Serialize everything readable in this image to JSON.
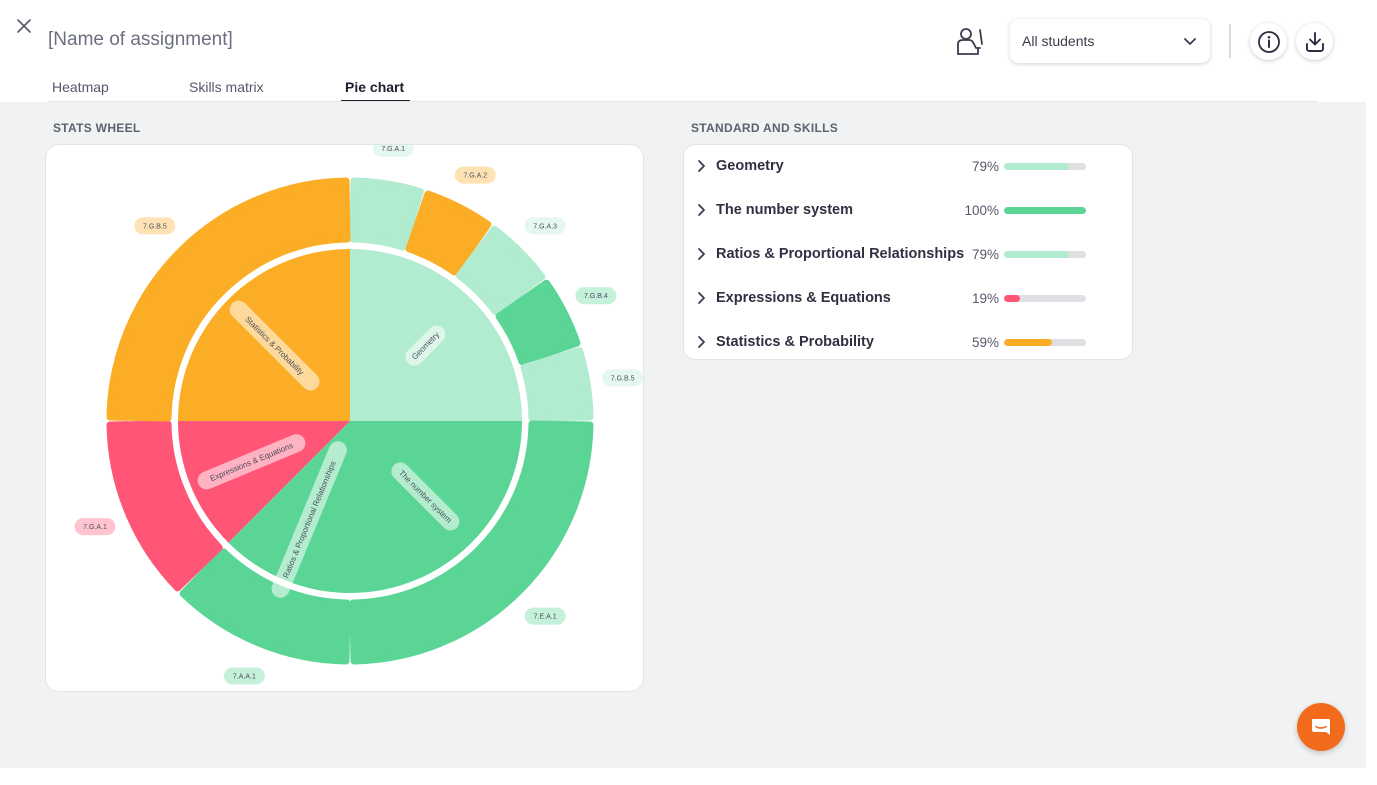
{
  "header": {
    "assignment_name": "[Name of assignment]",
    "student_filter": "All students",
    "icons": [
      "close-icon",
      "seat-icon",
      "chevron-down-icon",
      "info-icon",
      "download-icon"
    ]
  },
  "tabs": [
    {
      "label": "Heatmap",
      "active": false
    },
    {
      "label": "Skills matrix",
      "active": false
    },
    {
      "label": "Pie chart",
      "active": true
    }
  ],
  "stats_wheel": {
    "section_title": "STATS WHEEL"
  },
  "standards": {
    "section_title": "STANDARD AND SKILLS",
    "items": [
      {
        "label": "Geometry",
        "percent_text": "79%",
        "value": 79,
        "color": "#b1ebd0"
      },
      {
        "label": "The number system",
        "percent_text": "100%",
        "value": 100,
        "color": "#5ad596"
      },
      {
        "label": "Ratios & Proportional Relationships",
        "percent_text": "79%",
        "value": 79,
        "color": "#b1ebd0"
      },
      {
        "label": "Expressions & Equations",
        "percent_text": "19%",
        "value": 19,
        "color": "#ff5577"
      },
      {
        "label": "Statistics & Probability",
        "percent_text": "59%",
        "value": 59,
        "color": "#fbad25"
      }
    ]
  },
  "colors": {
    "orange": "#fbad25",
    "light_green": "#b1ebd0",
    "green": "#5ad596",
    "red": "#ff5577",
    "chat_button": "#f26b1d"
  },
  "chart_data": {
    "type": "pie",
    "inner": [
      {
        "label": "Geometry",
        "start_deg": 0,
        "end_deg": 90,
        "color": "#b1ebd0"
      },
      {
        "label": "The number system",
        "start_deg": 90,
        "end_deg": 180,
        "color": "#5ad596"
      },
      {
        "label": "Ratios & Proportional Relationships",
        "start_deg": 180,
        "end_deg": 225,
        "color": "#5ad596"
      },
      {
        "label": "Expressions & Equations",
        "start_deg": 225,
        "end_deg": 270,
        "color": "#ff5577"
      },
      {
        "label": "Statistics & Probability",
        "start_deg": 270,
        "end_deg": 360,
        "color": "#fbad25"
      }
    ],
    "outer": [
      {
        "label": "7.G.A.1",
        "start_deg": 0,
        "end_deg": 18,
        "color": "#b1ebd0"
      },
      {
        "label": "7.G.A.2",
        "start_deg": 18,
        "end_deg": 36,
        "color": "#fbad25"
      },
      {
        "label": "7.G.A.3",
        "start_deg": 36,
        "end_deg": 54,
        "color": "#b1ebd0"
      },
      {
        "label": "7.G.B.4",
        "start_deg": 54,
        "end_deg": 72,
        "color": "#5ad596"
      },
      {
        "label": "7.G.B.5",
        "start_deg": 72,
        "end_deg": 90,
        "color": "#b1ebd0"
      },
      {
        "label": "7.E.A.1",
        "start_deg": 90,
        "end_deg": 180,
        "color": "#5ad596"
      },
      {
        "label": "7.A.A.1",
        "start_deg": 180,
        "end_deg": 225,
        "color": "#5ad596"
      },
      {
        "label": "7.G.A.1",
        "start_deg": 225,
        "end_deg": 270,
        "color": "#ff5577"
      },
      {
        "label": "7.G.B.5",
        "start_deg": 270,
        "end_deg": 360,
        "color": "#fbad25"
      }
    ]
  }
}
